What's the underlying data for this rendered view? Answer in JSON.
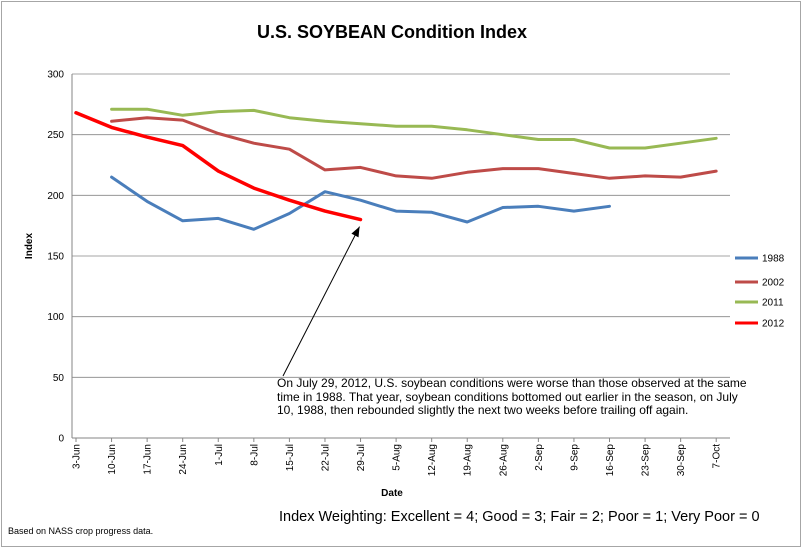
{
  "chart_data": {
    "type": "line",
    "title": "U.S. SOYBEAN Condition Index",
    "xlabel": "Date",
    "ylabel": "Index",
    "ylim": [
      0,
      300
    ],
    "yticks": [
      0,
      50,
      100,
      150,
      200,
      250,
      300
    ],
    "grid": "horizontal",
    "legend_position": "right",
    "categories": [
      "3-Jun",
      "10-Jun",
      "17-Jun",
      "24-Jun",
      "1-Jul",
      "8-Jul",
      "15-Jul",
      "22-Jul",
      "29-Jul",
      "5-Aug",
      "12-Aug",
      "19-Aug",
      "26-Aug",
      "2-Sep",
      "9-Sep",
      "16-Sep",
      "23-Sep",
      "30-Sep",
      "7-Oct"
    ],
    "series": [
      {
        "name": "1988",
        "color": "#4a7ebb",
        "values": [
          null,
          215,
          195,
          179,
          181,
          172,
          185,
          203,
          196,
          187,
          186,
          178,
          190,
          191,
          187,
          191,
          null,
          null,
          null
        ]
      },
      {
        "name": "2002",
        "color": "#be4b48",
        "values": [
          null,
          261,
          264,
          262,
          251,
          243,
          238,
          221,
          223,
          216,
          214,
          219,
          222,
          222,
          218,
          214,
          216,
          215,
          220
        ]
      },
      {
        "name": "2011",
        "color": "#98b954",
        "values": [
          null,
          271,
          271,
          266,
          269,
          270,
          264,
          261,
          259,
          257,
          257,
          254,
          250,
          246,
          246,
          239,
          239,
          243,
          247
        ]
      },
      {
        "name": "2012",
        "color": "#ff0000",
        "values": [
          268,
          256,
          248,
          241,
          220,
          206,
          196,
          187,
          180,
          null,
          null,
          null,
          null,
          null,
          null,
          null,
          null,
          null,
          null
        ]
      }
    ],
    "annotation": {
      "text": "On July 29, 2012, U.S. soybean conditions were worse than those observed at the same time in 1988.  That year, soybean conditions bottomed out earlier in the season, on July 10, 1988, then rebounded slightly the next two weeks before trailing off again.",
      "points_to": {
        "x": "29-Jul",
        "y": 180
      }
    }
  },
  "footnote": "Based on NASS crop progress data.",
  "weighting": "Index Weighting:  Excellent = 4; Good = 3; Fair = 2; Poor = 1; Very Poor = 0"
}
